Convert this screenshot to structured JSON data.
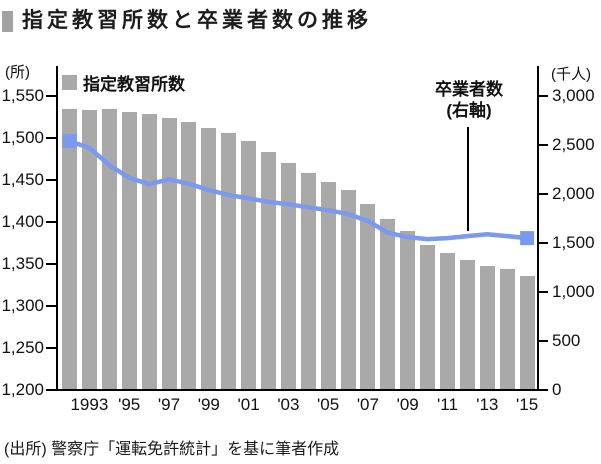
{
  "title": {
    "text": "指定教習所数と卒業者数の推移"
  },
  "legend": {
    "bars_label": "指定教習所数"
  },
  "annotation": {
    "line1": "卒業者数",
    "line2": "(右軸)"
  },
  "source": "(出所) 警察庁「運転免許統計」を基に筆者作成",
  "axes": {
    "left_unit": "(所)",
    "right_unit": "(千人)",
    "left_ticks": [
      1550,
      1500,
      1450,
      1400,
      1350,
      1300,
      1250,
      1200
    ],
    "right_ticks": [
      3000,
      2500,
      2000,
      1500,
      1000,
      500,
      0
    ],
    "x_tick_labels": [
      "1993",
      "'95",
      "'97",
      "'99",
      "'01",
      "'03",
      "'05",
      "'07",
      "'09",
      "'11",
      "'13",
      "'15"
    ],
    "x_tick_years": [
      1993,
      1995,
      1997,
      1999,
      2001,
      2003,
      2005,
      2007,
      2009,
      2011,
      2013,
      2015
    ]
  },
  "colors": {
    "bar": "#a9a9a9",
    "line": "#7b99ee",
    "axis": "#000000",
    "text": "#1a1a1a"
  },
  "chart_data": {
    "type": "bar",
    "title": "指定教習所数と卒業者数の推移",
    "categories": [
      1992,
      1993,
      1994,
      1995,
      1996,
      1997,
      1998,
      1999,
      2000,
      2001,
      2002,
      2003,
      2004,
      2005,
      2006,
      2007,
      2008,
      2009,
      2010,
      2011,
      2012,
      2013,
      2014,
      2015
    ],
    "series": [
      {
        "name": "指定教習所数",
        "type": "bar",
        "axis": "left",
        "color": "#a9a9a9",
        "values": [
          1534,
          1533,
          1534,
          1531,
          1529,
          1524,
          1519,
          1512,
          1506,
          1496,
          1483,
          1470,
          1458,
          1448,
          1438,
          1422,
          1404,
          1389,
          1373,
          1363,
          1355,
          1348,
          1344,
          1336
        ]
      },
      {
        "name": "卒業者数(右軸)",
        "type": "line",
        "axis": "right",
        "color": "#7b99ee",
        "values": [
          2540,
          2470,
          2295,
          2165,
          2100,
          2150,
          2105,
          2040,
          1990,
          1955,
          1920,
          1895,
          1865,
          1835,
          1795,
          1725,
          1605,
          1560,
          1540,
          1550,
          1570,
          1590,
          1570,
          1550
        ]
      }
    ],
    "left_axis": {
      "label": "(所)",
      "min": 1200,
      "max": 1550,
      "tick_step": 50
    },
    "right_axis": {
      "label": "(千人)",
      "min": 0,
      "max": 3000,
      "tick_step": 500
    },
    "grid": false,
    "legend_position": "top-left"
  }
}
